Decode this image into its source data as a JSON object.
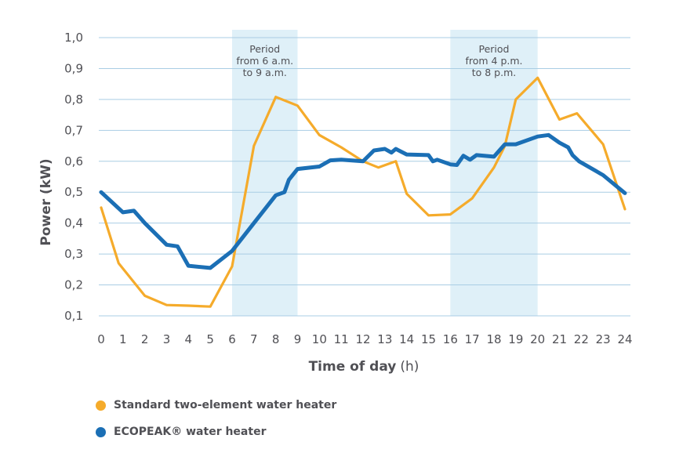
{
  "chart_data": {
    "type": "line",
    "xlabel": "Time of day",
    "xlabel_unit": "(h)",
    "ylabel": "Power (kW)",
    "xlim": [
      0,
      24
    ],
    "ylim": [
      0.1,
      1.0
    ],
    "x_ticks": [
      "0",
      "1",
      "2",
      "3",
      "4",
      "5",
      "6",
      "7",
      "8",
      "9",
      "10",
      "11",
      "12",
      "13",
      "14",
      "15",
      "16",
      "17",
      "18",
      "19",
      "20",
      "21",
      "22",
      "23",
      "24"
    ],
    "y_ticks": [
      "0,1",
      "0,2",
      "0,3",
      "0,4",
      "0,5",
      "0,6",
      "0,7",
      "0,8",
      "0,9",
      "1,0"
    ],
    "grid": "horizontal",
    "bands": [
      {
        "from": 6,
        "to": 9,
        "label": [
          "Period",
          "from 6 a.m.",
          "to 9 a.m."
        ],
        "color": "#dff0f8"
      },
      {
        "from": 16,
        "to": 20,
        "label": [
          "Period",
          "from 4 p.m.",
          "to 8 p.m."
        ],
        "color": "#dff0f8"
      }
    ],
    "series": [
      {
        "name": "Standard two-element water heater",
        "color": "#f5ab2b",
        "x": [
          0,
          0.8,
          2,
          3,
          4,
          5,
          6,
          7,
          8,
          9,
          10,
          11,
          12,
          12.7,
          13.5,
          14,
          15,
          16,
          17,
          18,
          18.5,
          19,
          20,
          21,
          21.8,
          23,
          24
        ],
        "y": [
          0.45,
          0.27,
          0.165,
          0.135,
          0.133,
          0.13,
          0.26,
          0.65,
          0.808,
          0.78,
          0.685,
          0.645,
          0.6,
          0.58,
          0.6,
          0.495,
          0.425,
          0.428,
          0.48,
          0.58,
          0.65,
          0.8,
          0.87,
          0.735,
          0.755,
          0.655,
          0.445
        ]
      },
      {
        "name": "ECOPEAK® water heater",
        "color": "#1b6fb5",
        "x": [
          0,
          1,
          1.5,
          2,
          3,
          3.5,
          4,
          5,
          6,
          7,
          8,
          8.4,
          8.6,
          9,
          10,
          10.5,
          11,
          12,
          12.5,
          13,
          13.3,
          13.5,
          14,
          15,
          15.2,
          15.4,
          16,
          16.3,
          16.6,
          16.9,
          17.2,
          18,
          18.5,
          19,
          20,
          20.5,
          21,
          21.4,
          21.6,
          21.9,
          23,
          24
        ],
        "y": [
          0.5,
          0.435,
          0.44,
          0.4,
          0.33,
          0.325,
          0.262,
          0.255,
          0.31,
          0.4,
          0.49,
          0.5,
          0.54,
          0.575,
          0.583,
          0.603,
          0.605,
          0.6,
          0.635,
          0.64,
          0.628,
          0.64,
          0.622,
          0.62,
          0.6,
          0.605,
          0.59,
          0.588,
          0.618,
          0.605,
          0.62,
          0.615,
          0.655,
          0.655,
          0.68,
          0.685,
          0.66,
          0.645,
          0.62,
          0.6,
          0.555,
          0.497
        ]
      }
    ]
  }
}
